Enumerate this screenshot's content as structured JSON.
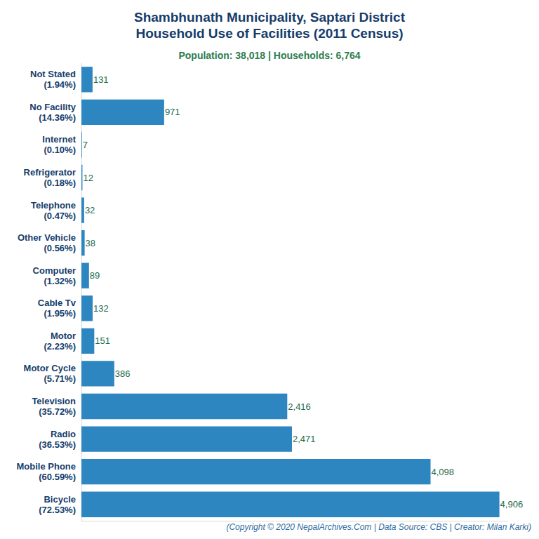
{
  "chart_data": {
    "type": "bar",
    "orientation": "horizontal",
    "title": "Shambhunath Municipality, Saptari District\nHousehold Use of Facilities (2011 Census)",
    "subtitle": "Population: 38,018 | Households: 6,764",
    "caption": "(Copyright © 2020 NepalArchives.Com | Data Source: CBS | Creator: Milan Karki)",
    "categories": [
      "Not Stated\n(1.94%)",
      "No Facility\n(14.36%)",
      "Internet\n(0.10%)",
      "Refrigerator\n(0.18%)",
      "Telephone\n(0.47%)",
      "Other Vehicle\n(0.56%)",
      "Computer\n(1.32%)",
      "Cable Tv\n(1.95%)",
      "Motor\n(2.23%)",
      "Motor Cycle\n(5.71%)",
      "Television\n(35.72%)",
      "Radio\n(36.53%)",
      "Mobile Phone\n(60.59%)",
      "Bicycle\n(72.53%)"
    ],
    "values": [
      131,
      971,
      7,
      12,
      32,
      38,
      89,
      132,
      151,
      386,
      2416,
      2471,
      4098,
      4906
    ],
    "value_labels": [
      "131",
      "971",
      "7",
      "12",
      "32",
      "38",
      "89",
      "132",
      "151",
      "386",
      "2,416",
      "2,471",
      "4,098",
      "4,906"
    ],
    "color": "#2e86c1",
    "xlim": [
      0,
      5000
    ],
    "xticks": [],
    "tick_labels": "y",
    "grid": false,
    "data_labels": true
  }
}
